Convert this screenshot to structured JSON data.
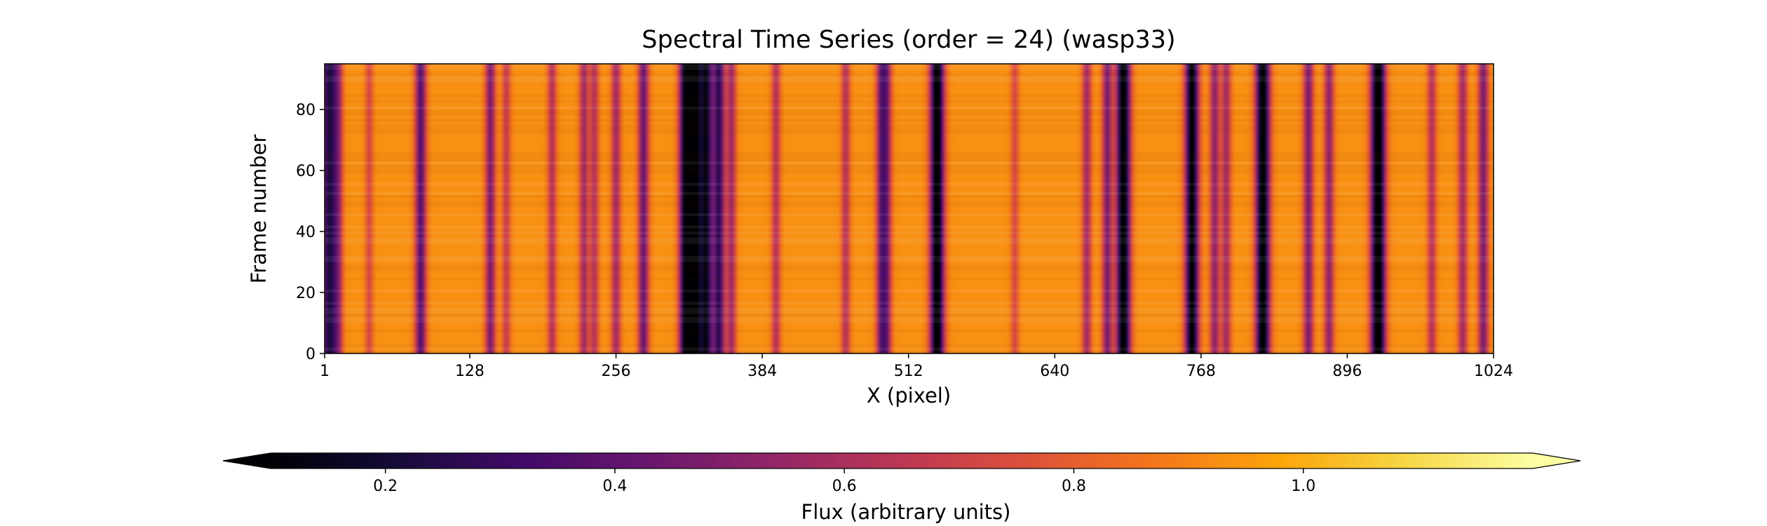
{
  "chart_data": {
    "type": "heatmap",
    "title": "Spectral Time Series (order = 24) (wasp33)",
    "xlabel": "X (pixel)",
    "ylabel": "Frame number",
    "xlim": [
      1,
      1024
    ],
    "ylim": [
      0,
      95
    ],
    "x_ticks": [
      "1",
      "128",
      "256",
      "384",
      "512",
      "640",
      "768",
      "896",
      "1024"
    ],
    "y_ticks": [
      "0",
      "20",
      "40",
      "60",
      "80"
    ],
    "colormap": "inferno",
    "colorbar": {
      "label": "Flux (arbitrary units)",
      "range": [
        0.1,
        1.2
      ],
      "ticks": [
        "0.2",
        "0.4",
        "0.6",
        "0.8",
        "1.0"
      ],
      "extend": "both",
      "orientation": "horizontal"
    },
    "baseline_flux": 0.93,
    "absorption_lines": [
      {
        "x": 3,
        "depth": 0.55
      },
      {
        "x": 8,
        "depth": 0.4
      },
      {
        "x": 13,
        "depth": 0.35
      },
      {
        "x": 40,
        "depth": 0.2
      },
      {
        "x": 85,
        "depth": 0.55
      },
      {
        "x": 146,
        "depth": 0.45
      },
      {
        "x": 160,
        "depth": 0.25
      },
      {
        "x": 200,
        "depth": 0.3
      },
      {
        "x": 228,
        "depth": 0.35
      },
      {
        "x": 237,
        "depth": 0.3
      },
      {
        "x": 256,
        "depth": 0.35
      },
      {
        "x": 280,
        "depth": 0.5
      },
      {
        "x": 317,
        "depth": 0.8
      },
      {
        "x": 325,
        "depth": 0.85
      },
      {
        "x": 335,
        "depth": 0.75
      },
      {
        "x": 346,
        "depth": 0.65
      },
      {
        "x": 357,
        "depth": 0.35
      },
      {
        "x": 396,
        "depth": 0.3
      },
      {
        "x": 457,
        "depth": 0.3
      },
      {
        "x": 488,
        "depth": 0.45
      },
      {
        "x": 493,
        "depth": 0.4
      },
      {
        "x": 537,
        "depth": 0.9
      },
      {
        "x": 605,
        "depth": 0.2
      },
      {
        "x": 668,
        "depth": 0.35
      },
      {
        "x": 686,
        "depth": 0.45
      },
      {
        "x": 700,
        "depth": 0.9
      },
      {
        "x": 760,
        "depth": 0.85
      },
      {
        "x": 780,
        "depth": 0.4
      },
      {
        "x": 790,
        "depth": 0.35
      },
      {
        "x": 822,
        "depth": 0.9
      },
      {
        "x": 862,
        "depth": 0.45
      },
      {
        "x": 880,
        "depth": 0.4
      },
      {
        "x": 923,
        "depth": 0.95
      },
      {
        "x": 970,
        "depth": 0.3
      },
      {
        "x": 997,
        "depth": 0.35
      },
      {
        "x": 1015,
        "depth": 0.45
      }
    ]
  }
}
